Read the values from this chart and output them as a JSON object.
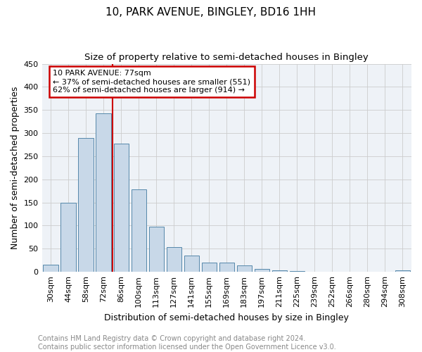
{
  "title": "10, PARK AVENUE, BINGLEY, BD16 1HH",
  "subtitle": "Size of property relative to semi-detached houses in Bingley",
  "xlabel": "Distribution of semi-detached houses by size in Bingley",
  "ylabel": "Number of semi-detached properties",
  "footer_line1": "Contains HM Land Registry data © Crown copyright and database right 2024.",
  "footer_line2": "Contains public sector information licensed under the Open Government Licence v3.0.",
  "categories": [
    "30sqm",
    "44sqm",
    "58sqm",
    "72sqm",
    "86sqm",
    "100sqm",
    "113sqm",
    "127sqm",
    "141sqm",
    "155sqm",
    "169sqm",
    "183sqm",
    "197sqm",
    "211sqm",
    "225sqm",
    "239sqm",
    "252sqm",
    "266sqm",
    "280sqm",
    "294sqm",
    "308sqm"
  ],
  "values": [
    15,
    150,
    290,
    343,
    278,
    178,
    98,
    53,
    36,
    20,
    20,
    14,
    7,
    3,
    2,
    1,
    1,
    0,
    1,
    0,
    4
  ],
  "bar_color": "#c8d8e8",
  "bar_edge_color": "#5588aa",
  "property_label": "10 PARK AVENUE: 77sqm",
  "smaller_pct": 37,
  "smaller_count": 551,
  "larger_pct": 62,
  "larger_count": 914,
  "vline_color": "#cc0000",
  "annotation_box_edge_color": "#cc0000",
  "ylim": [
    0,
    450
  ],
  "yticks": [
    0,
    50,
    100,
    150,
    200,
    250,
    300,
    350,
    400,
    450
  ],
  "grid_color": "#cccccc",
  "bg_color": "#eef2f7",
  "title_fontsize": 11,
  "subtitle_fontsize": 9.5,
  "axis_label_fontsize": 9,
  "tick_fontsize": 8,
  "footer_fontsize": 7
}
